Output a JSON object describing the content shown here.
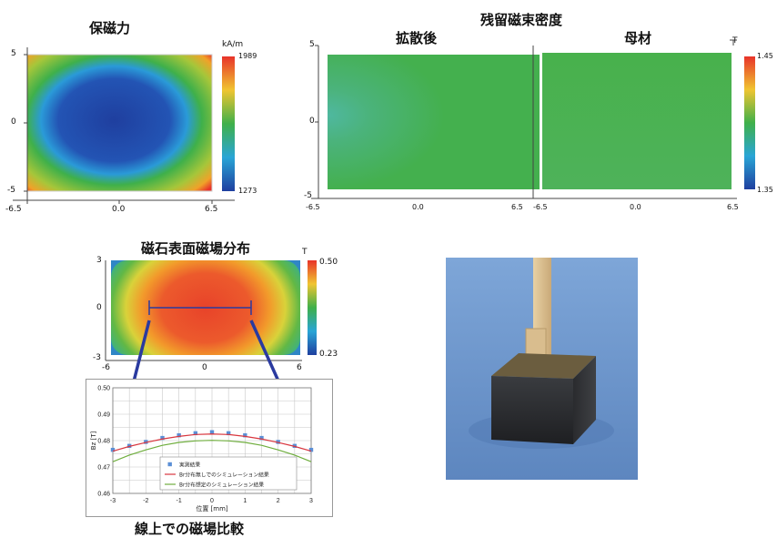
{
  "colors": {
    "low": "#1f3f9f",
    "mid": "#3fb04a",
    "high": "#e8332a",
    "photo_background": "#6f9ad0",
    "magnet_body": "#2d2f33",
    "wood_stick": "#d9bd8e"
  },
  "chart_data": [
    {
      "type": "heatmap",
      "title": "保磁力",
      "x_ticks": [
        "-6.5",
        "0.0",
        "6.5"
      ],
      "y_ticks": [
        "5",
        "0",
        "-5"
      ],
      "xlim": [
        -6.5,
        6.5
      ],
      "ylim": [
        -5,
        5
      ],
      "colorbar": {
        "unit": "kA/m",
        "max_label": "1989",
        "min_label": "1273"
      },
      "pattern": "low value (blue) ellipse centered at (0,0), high value (red) at corners"
    },
    {
      "type": "heatmap",
      "group_title": "残留磁束密度",
      "title": "拡散後",
      "x_ticks": [
        "-6.5",
        "0.0",
        "6.5"
      ],
      "y_ticks": [
        "5",
        "0",
        "-5"
      ],
      "xlim": [
        -6.5,
        6.5
      ],
      "ylim": [
        -5,
        5
      ],
      "pattern": "nearly uniform green, slightly lower (teal) near left edge center"
    },
    {
      "type": "heatmap",
      "group_title": "残留磁束密度",
      "title": "母材",
      "x_ticks": [
        "-6.5",
        "0.0",
        "6.5"
      ],
      "xlim": [
        -6.5,
        6.5
      ],
      "ylim": [
        -5,
        5
      ],
      "colorbar": {
        "unit": "T",
        "max_label": "1.45",
        "min_label": "1.35"
      },
      "pattern": "uniform green"
    },
    {
      "type": "heatmap",
      "title": "磁石表面磁場分布",
      "x_ticks": [
        "-6",
        "0",
        "6"
      ],
      "y_ticks": [
        "3",
        "0",
        "-3"
      ],
      "xlim": [
        -6,
        6
      ],
      "ylim": [
        -3,
        3
      ],
      "colorbar": {
        "unit": "T",
        "max_label": "0.50",
        "min_label": "0.23"
      },
      "line_segment": {
        "x": [
          -3,
          3
        ],
        "y": 0
      },
      "pattern": "high value (red) rounded rectangle at center, low value (blue) at corners"
    },
    {
      "type": "line",
      "title": "線上での磁場比較",
      "xlabel": "位置 [mm]",
      "ylabel": "Bz [T]",
      "xlim": [
        -3,
        3
      ],
      "ylim": [
        0.46,
        0.5
      ],
      "x_ticks": [
        "-3",
        "-2",
        "-1",
        "0",
        "1",
        "2",
        "3"
      ],
      "y_ticks": [
        "0.50",
        "0.49",
        "0.48",
        "0.47",
        "0.46"
      ],
      "grid": true,
      "legend_position": "lower-center",
      "series": [
        {
          "name": "実測結果",
          "style": "square-markers",
          "color": "#5b8fd6",
          "x": [
            -3,
            -2.5,
            -2,
            -1.5,
            -1,
            -0.5,
            0,
            0.5,
            1,
            1.5,
            2,
            2.5,
            3
          ],
          "y": [
            0.4765,
            0.478,
            0.4795,
            0.481,
            0.482,
            0.4828,
            0.4832,
            0.4828,
            0.482,
            0.481,
            0.4795,
            0.478,
            0.4765
          ]
        },
        {
          "name": "Br分布無しでのシミュレーション結果",
          "style": "line",
          "color": "#d9363e",
          "x": [
            -3,
            -2.5,
            -2,
            -1.5,
            -1,
            -0.5,
            0,
            0.5,
            1,
            1.5,
            2,
            2.5,
            3
          ],
          "y": [
            0.476,
            0.4778,
            0.4793,
            0.4806,
            0.4816,
            0.4823,
            0.4825,
            0.4823,
            0.4816,
            0.4806,
            0.4793,
            0.4778,
            0.476
          ]
        },
        {
          "name": "Br分布想定のシミュレーション結果",
          "style": "line",
          "color": "#6fae3e",
          "x": [
            -3,
            -2.5,
            -2,
            -1.5,
            -1,
            -0.5,
            0,
            0.5,
            1,
            1.5,
            2,
            2.5,
            3
          ],
          "y": [
            0.472,
            0.4745,
            0.4765,
            0.4782,
            0.4793,
            0.4799,
            0.4801,
            0.4799,
            0.4793,
            0.4782,
            0.4765,
            0.4745,
            0.472
          ]
        }
      ]
    }
  ]
}
